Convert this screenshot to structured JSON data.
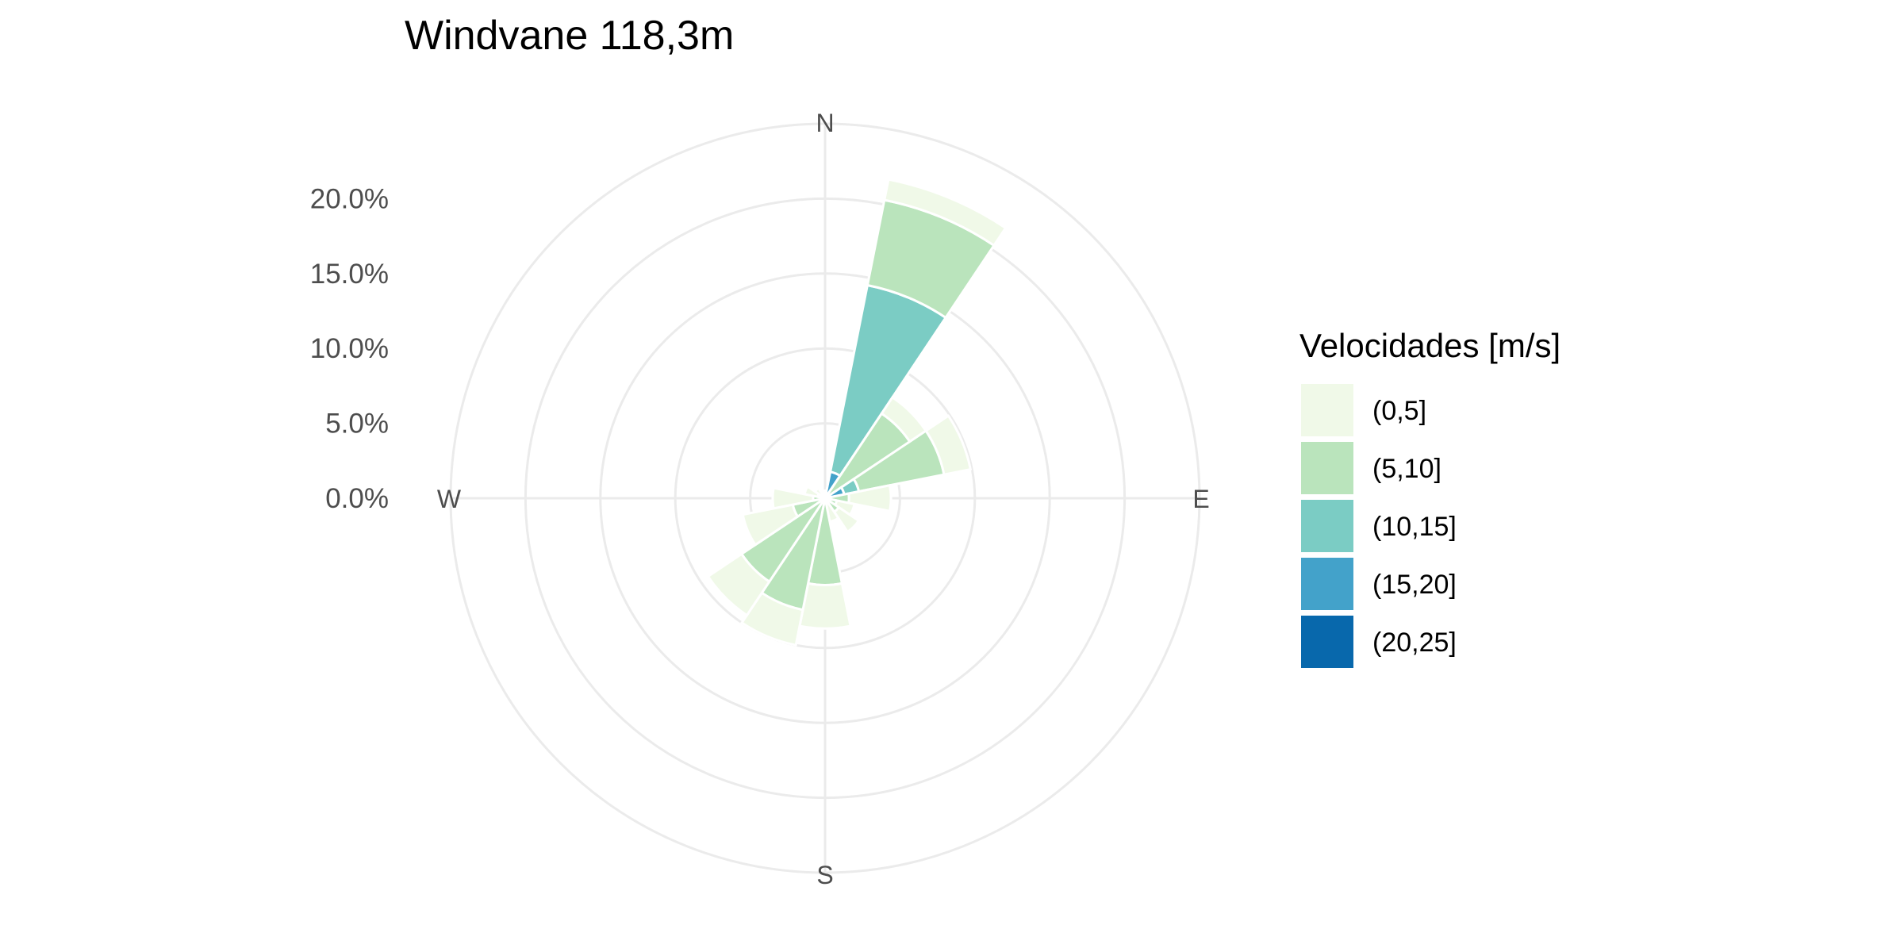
{
  "chart_data": {
    "type": "wind_rose",
    "title": "Windvane 118,3m",
    "directions": [
      "N",
      "NNE",
      "NE",
      "ENE",
      "E",
      "ESE",
      "SE",
      "SSE",
      "S",
      "SSW",
      "SW",
      "WSW",
      "W",
      "WNW",
      "NW",
      "NNW"
    ],
    "cardinal_labels": [
      "N",
      "E",
      "S",
      "W"
    ],
    "radial_ticks": [
      "0.0%",
      "5.0%",
      "10.0%",
      "15.0%",
      "20.0%"
    ],
    "radial_tick_values": [
      0,
      5,
      10,
      15,
      20
    ],
    "rmax": 25,
    "grid": true,
    "legend": {
      "title": "Velocidades [m/s]",
      "position": "right"
    },
    "series": [
      {
        "name": "(0,5]",
        "color": "#f0f9e8",
        "values": [
          0.3,
          1.4,
          1.3,
          1.8,
          2.8,
          1.2,
          1.6,
          1.2,
          2.9,
          2.4,
          2.7,
          3.4,
          2.7,
          0.9,
          0.5,
          0.3
        ]
      },
      {
        "name": "(5,10]",
        "color": "#bae4bc",
        "values": [
          0.2,
          5.8,
          6.8,
          5.8,
          1.6,
          0.8,
          1.1,
          0.4,
          5.8,
          7.6,
          6.7,
          2.2,
          0.8,
          0.5,
          0.3,
          0.2
        ]
      },
      {
        "name": "(10,15]",
        "color": "#7bccc4",
        "values": [
          0.0,
          12.7,
          0.0,
          1.0,
          0.0,
          0.0,
          0.0,
          0.0,
          0.0,
          0.0,
          0.0,
          0.0,
          0.0,
          0.0,
          0.0,
          0.0
        ]
      },
      {
        "name": "(15,20]",
        "color": "#43a2ca",
        "values": [
          0.0,
          1.8,
          0.0,
          1.3,
          0.0,
          0.0,
          0.0,
          0.0,
          0.0,
          0.0,
          0.0,
          0.0,
          0.0,
          0.0,
          0.0,
          0.0
        ]
      },
      {
        "name": "(20,25]",
        "color": "#0868ac",
        "values": [
          0,
          0,
          0,
          0,
          0,
          0,
          0,
          0,
          0,
          0,
          0,
          0,
          0,
          0,
          0,
          0
        ]
      }
    ]
  }
}
